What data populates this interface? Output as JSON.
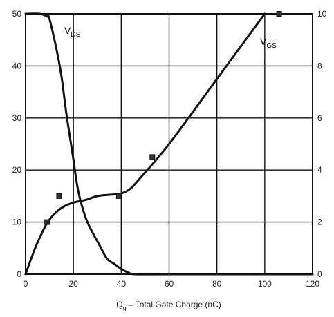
{
  "chart_data": {
    "type": "line",
    "title": "",
    "xlabel": "Q",
    "xlabel_sub": "g",
    "xlabel_rest": " – Total Gate Charge (nC)",
    "ylabel_left": "",
    "ylabel_right": "",
    "xlim": [
      0,
      120
    ],
    "ylim_left": [
      0,
      50
    ],
    "ylim_right": [
      0,
      10
    ],
    "x_ticks": [
      "0",
      "20",
      "40",
      "60",
      "80",
      "100",
      "120"
    ],
    "y_left_ticks": [
      "0",
      "10",
      "20",
      "30",
      "40",
      "50"
    ],
    "y_right_ticks": [
      "0",
      "2",
      "4",
      "6",
      "8",
      "10"
    ],
    "grid": true,
    "series": [
      {
        "name": "V",
        "name_sub": "DS",
        "axis": "left",
        "color": "#111111",
        "x": [
          0,
          6,
          9,
          10,
          13,
          15,
          17,
          19,
          20,
          22,
          25,
          28,
          31,
          34,
          37,
          40,
          43,
          46,
          60,
          80,
          100,
          120
        ],
        "y": [
          50,
          50,
          49.5,
          49,
          43,
          38,
          31,
          25,
          22,
          16,
          11,
          8,
          5.5,
          3,
          2,
          1,
          0.3,
          0,
          0,
          0,
          0,
          0
        ]
      },
      {
        "name": "V",
        "name_sub": "GS",
        "axis": "right",
        "color": "#111111",
        "x": [
          0,
          4,
          8,
          10,
          13,
          16,
          20,
          25,
          30,
          35,
          40,
          44,
          48,
          60,
          80,
          100
        ],
        "y": [
          0,
          1,
          1.8,
          2.1,
          2.4,
          2.6,
          2.75,
          2.85,
          3.0,
          3.05,
          3.1,
          3.3,
          3.7,
          5.0,
          7.5,
          10
        ]
      }
    ],
    "markers": {
      "axis": "left",
      "x": [
        9,
        14,
        39,
        53,
        106
      ],
      "y": [
        10,
        15,
        15,
        22.5,
        50
      ]
    }
  }
}
